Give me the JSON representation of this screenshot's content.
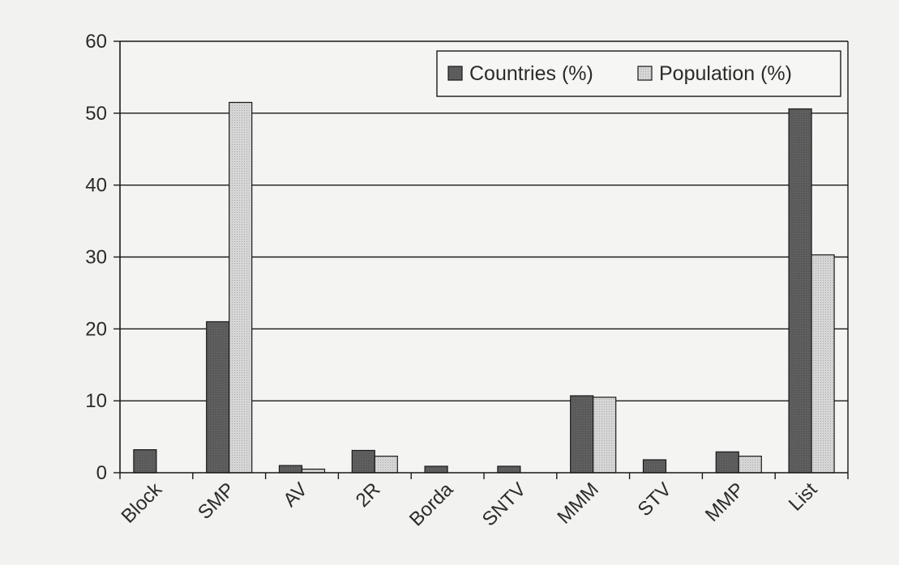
{
  "chart_data": {
    "type": "bar",
    "categories": [
      "Block",
      "SMP",
      "AV",
      "2R",
      "Borda",
      "SNTV",
      "MMM",
      "STV",
      "MMP",
      "List"
    ],
    "series": [
      {
        "name": "Countries (%)",
        "values": [
          3.2,
          21.0,
          1.0,
          3.1,
          0.9,
          0.9,
          10.7,
          1.8,
          2.9,
          50.6
        ],
        "color": "#5a5a5a"
      },
      {
        "name": "Population (%)",
        "values": [
          0,
          51.5,
          0.5,
          2.3,
          0,
          0,
          10.5,
          0,
          2.3,
          30.3
        ],
        "color": "#cfcfcf"
      }
    ],
    "ylim": [
      0,
      60
    ],
    "yticks": [
      "0",
      "10",
      "20",
      "30",
      "40",
      "50",
      "60"
    ],
    "grid": true,
    "legend_position": "top-right",
    "xlabel": "",
    "ylabel": "",
    "title": ""
  }
}
